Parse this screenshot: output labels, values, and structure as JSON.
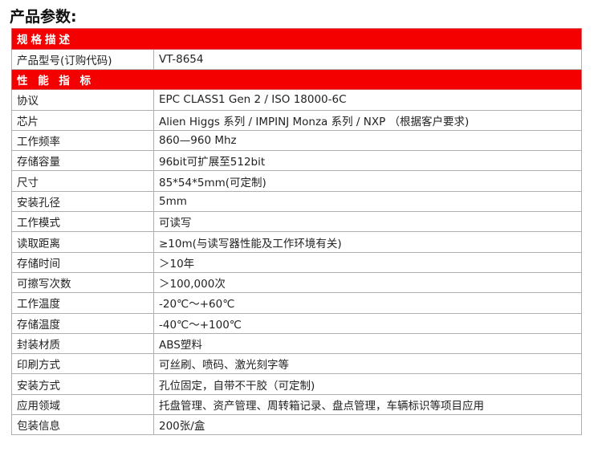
{
  "title": "产品参数:",
  "sections": [
    {
      "heading": "规格描述",
      "rows": [
        [
          "产品型号(订购代码)",
          "VT-8654"
        ]
      ]
    },
    {
      "heading": "性 能 指 标",
      "rows": [
        [
          "协议",
          "EPC  CLASS1  Gen  2  /  ISO  18000-6C"
        ],
        [
          "芯片",
          "Alien Higgs 系列 / IMPINJ Monza 系列 / NXP （根据客户要求)"
        ],
        [
          "工作频率",
          "860—960 Mhz"
        ],
        [
          "存储容量",
          "96bit可扩展至512bit"
        ],
        [
          "尺寸",
          "85*54*5mm(可定制)"
        ],
        [
          "安装孔径",
          "5mm"
        ],
        [
          "工作模式",
          "可读写"
        ],
        [
          "读取距离",
          "≥10m(与读写器性能及工作环境有关)"
        ],
        [
          "存储时间",
          "＞10年"
        ],
        [
          "可擦写次数",
          "＞100,000次"
        ],
        [
          "工作温度",
          "-20℃～+60℃"
        ],
        [
          "存储温度",
          "-40℃～+100℃"
        ],
        [
          "封装材质",
          "ABS塑料"
        ],
        [
          "印刷方式",
          "可丝刷、喷码、激光刻字等"
        ],
        [
          "安装方式",
          "孔位固定，自带不干胶（可定制)"
        ],
        [
          "应用领域",
          "托盘管理、资产管理、周转箱记录、盘点管理，车辆标识等项目应用"
        ],
        [
          "包装信息",
          "200张/盒"
        ]
      ]
    }
  ],
  "colors": {
    "section_header": "#f50000"
  }
}
